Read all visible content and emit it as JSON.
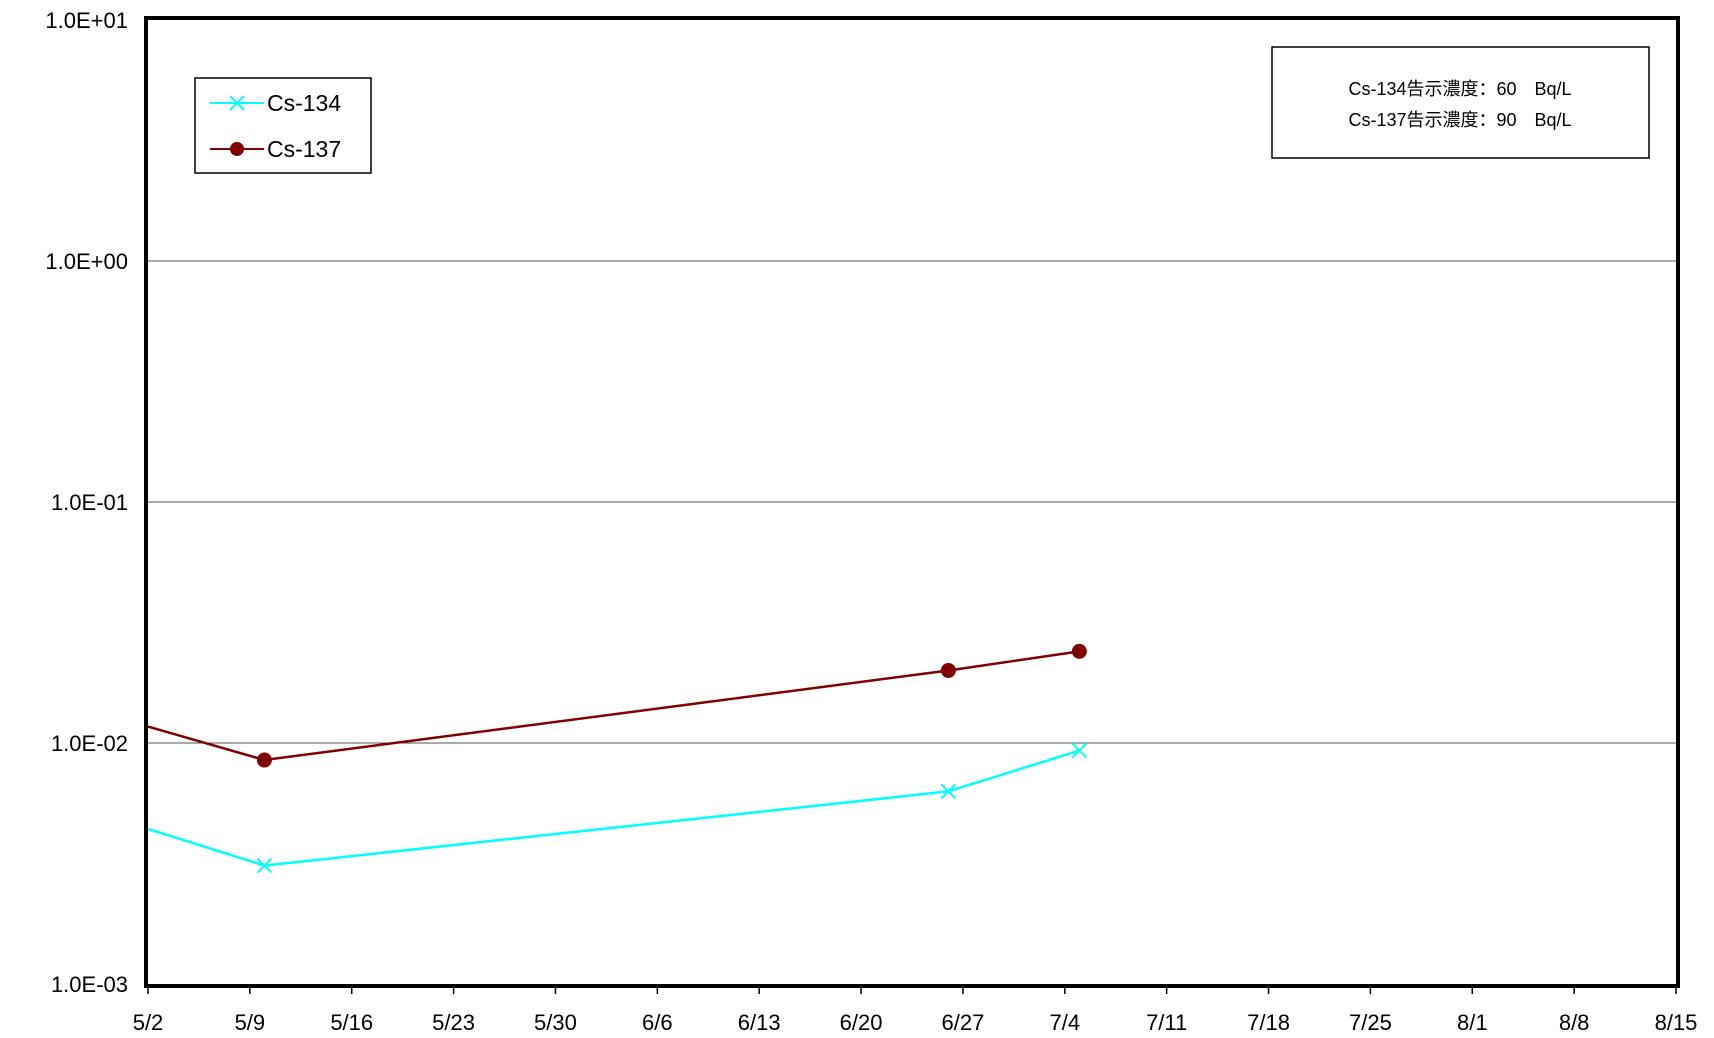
{
  "chart_data": {
    "type": "line",
    "title": "",
    "xlabel": "",
    "ylabel": "",
    "y_scale": "log",
    "ylim": [
      0.001,
      10
    ],
    "y_ticks": [
      0.001,
      0.01,
      0.1,
      1,
      10
    ],
    "y_tick_labels": [
      "1.0E-03",
      "1.0E-02",
      "1.0E-01",
      "1.0E+00",
      "1.0E+01"
    ],
    "x_tick_labels": [
      "5/2",
      "5/9",
      "5/16",
      "5/23",
      "5/30",
      "6/6",
      "6/13",
      "6/20",
      "6/27",
      "7/4",
      "7/11",
      "7/18",
      "7/25",
      "8/1",
      "8/8",
      "8/15"
    ],
    "xlim": [
      "5/2",
      "8/15"
    ],
    "grid": "horizontal",
    "legend_position": "top-left",
    "series": [
      {
        "name": "Cs-134",
        "color": "#00ffff",
        "marker": "x",
        "x": [
          "5/2",
          "5/10",
          "6/26",
          "7/5"
        ],
        "values": [
          0.0044,
          0.0031,
          0.0063,
          0.0093
        ]
      },
      {
        "name": "Cs-137",
        "color": "#800000",
        "marker": "circle",
        "x": [
          "5/2",
          "5/10",
          "6/26",
          "7/5"
        ],
        "values": [
          0.0117,
          0.0085,
          0.02,
          0.024
        ]
      }
    ],
    "annotation": {
      "lines": [
        "Cs-134告示濃度：60　Bq/L",
        "Cs-137告示濃度：90　Bq/L"
      ]
    }
  }
}
